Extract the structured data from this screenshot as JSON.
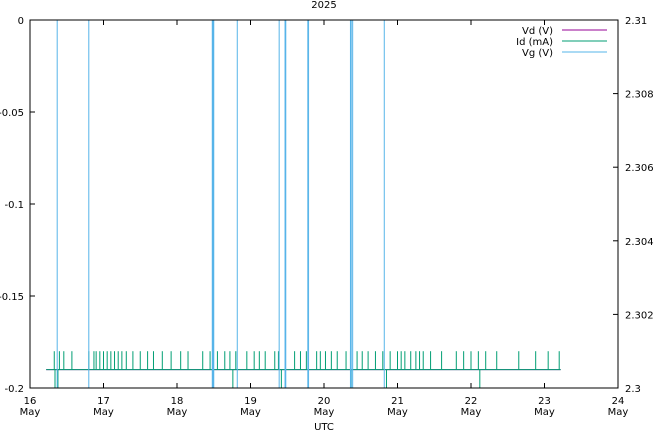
{
  "chart_data": {
    "type": "line",
    "title": "2025",
    "xlabel": "UTC",
    "ylabel": "",
    "y2label": "",
    "xlim": [
      16,
      24
    ],
    "ylim": [
      -0.2,
      0
    ],
    "y2lim": [
      2.3,
      2.31
    ],
    "x_ticks": [
      {
        "value": 16,
        "day": "16",
        "month": "May"
      },
      {
        "value": 17,
        "day": "17",
        "month": "May"
      },
      {
        "value": 18,
        "day": "18",
        "month": "May"
      },
      {
        "value": 19,
        "day": "19",
        "month": "May"
      },
      {
        "value": 20,
        "day": "20",
        "month": "May"
      },
      {
        "value": 21,
        "day": "21",
        "month": "May"
      },
      {
        "value": 22,
        "day": "22",
        "month": "May"
      },
      {
        "value": 23,
        "day": "23",
        "month": "May"
      },
      {
        "value": 24,
        "day": "24",
        "month": "May"
      }
    ],
    "y_ticks": [
      {
        "value": 0,
        "label": "0"
      },
      {
        "value": -0.05,
        "label": "-0.05"
      },
      {
        "value": -0.1,
        "label": "-0.1"
      },
      {
        "value": -0.15,
        "label": "-0.15"
      },
      {
        "value": -0.2,
        "label": "-0.2"
      }
    ],
    "y2_ticks": [
      {
        "value": 2.31,
        "label": "2.31"
      },
      {
        "value": 2.308,
        "label": "2.308"
      },
      {
        "value": 2.306,
        "label": "2.306"
      },
      {
        "value": 2.304,
        "label": "2.304"
      },
      {
        "value": 2.302,
        "label": "2.302"
      },
      {
        "value": 2.3,
        "label": "2.3"
      }
    ],
    "legend_position": "top-right",
    "series": [
      {
        "name": "Vd (V)",
        "axis": "y",
        "color": "#940094",
        "range": [
          16.22,
          23.22
        ],
        "baseline": -0.19,
        "spike_value": -0.19,
        "spikes": []
      },
      {
        "name": "Id (mA)",
        "axis": "y",
        "color": "#009e73",
        "range": [
          16.22,
          23.22
        ],
        "baseline": -0.19,
        "spike_value": -0.18,
        "spikes": [
          16.33,
          16.4,
          16.46,
          16.57,
          16.8,
          16.87,
          16.9,
          16.95,
          17.0,
          17.05,
          17.1,
          17.15,
          17.2,
          17.25,
          17.31,
          17.4,
          17.5,
          17.6,
          17.68,
          17.8,
          17.92,
          18.05,
          18.15,
          18.35,
          18.45,
          18.55,
          18.65,
          18.72,
          18.8,
          18.95,
          19.05,
          19.12,
          19.2,
          19.33,
          19.38,
          19.6,
          19.68,
          19.76,
          19.9,
          19.95,
          20.02,
          20.1,
          20.18,
          20.3,
          20.36,
          20.45,
          20.52,
          20.6,
          20.7,
          20.8,
          20.9,
          21.0,
          21.05,
          21.1,
          21.18,
          21.25,
          21.3,
          21.35,
          21.45,
          21.6,
          21.8,
          21.9,
          22.0,
          22.1,
          22.2,
          22.35,
          22.65,
          22.88,
          23.05,
          23.2
        ],
        "dips": [
          16.34,
          16.38,
          18.76,
          19.42,
          20.37,
          20.85,
          22.12
        ]
      },
      {
        "name": "Vg (V)",
        "axis": "y2",
        "color": "#56b4e9",
        "range": [
          16.22,
          23.22
        ],
        "baseline": 2.3,
        "spike_value": 2.31,
        "spikes": [
          16.37,
          16.8,
          18.48,
          18.49,
          18.5,
          18.82,
          19.39,
          19.47,
          19.48,
          19.78,
          19.79,
          20.36,
          20.37,
          20.39,
          20.82
        ]
      }
    ]
  }
}
